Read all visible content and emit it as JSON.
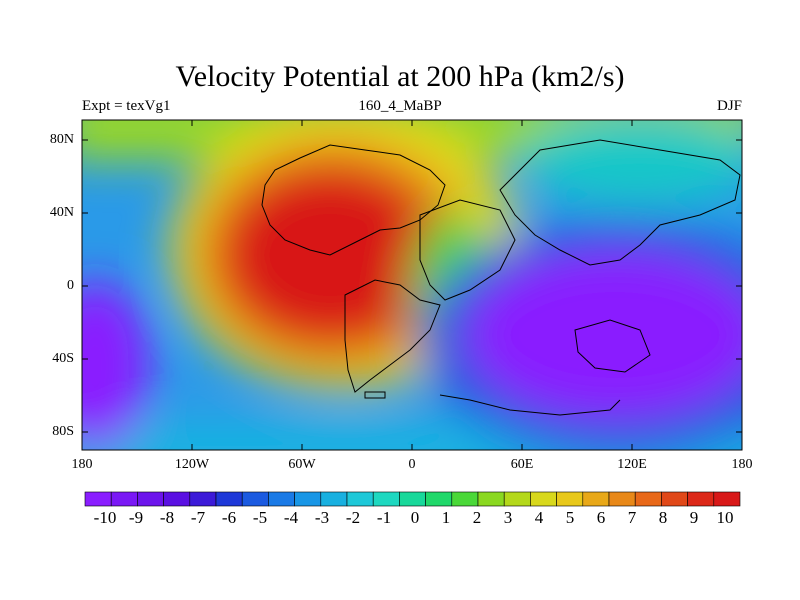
{
  "title": "Velocity Potential at 200 hPa (km2/s)",
  "subtitle_left": "Expt = texVg1",
  "subtitle_center": "160_4_MaBP",
  "subtitle_right": "DJF",
  "y_axis_labels": [
    "80N",
    "40N",
    "0",
    "40S",
    "80S"
  ],
  "x_axis_labels": [
    "180",
    "120W",
    "60W",
    "0",
    "60E",
    "120E",
    "180"
  ],
  "colorbar": {
    "labels": [
      "-10",
      "-9",
      "-8",
      "-7",
      "-6",
      "-5",
      "-4",
      "-3",
      "-2",
      "-1",
      "0",
      "1",
      "2",
      "3",
      "4",
      "5",
      "6",
      "7",
      "8",
      "9",
      "10"
    ],
    "colors": [
      "#8a1eff",
      "#7a18f5",
      "#6c14ec",
      "#5a10e2",
      "#3c1ad8",
      "#1e38d8",
      "#1b5ae0",
      "#1a7ae6",
      "#1896e6",
      "#18b0e0",
      "#1ec8d8",
      "#1ed8c0",
      "#18d89a",
      "#20d86a",
      "#4ad838",
      "#8ad820",
      "#b4d81a",
      "#d8d81c",
      "#e8c81a",
      "#e8a818",
      "#e88818",
      "#e86818",
      "#e04818",
      "#dc2818",
      "#d81818"
    ]
  },
  "chart_data": {
    "type": "heatmap",
    "title": "Velocity Potential at 200 hPa (km2/s)",
    "variable": "velocity potential",
    "units": "km2/s",
    "level": "200 hPa",
    "experiment": "texVg1",
    "case": "160_4_MaBP",
    "season": "DJF",
    "x_ticks": [
      "180",
      "120W",
      "60W",
      "0",
      "60E",
      "120E",
      "180"
    ],
    "y_ticks": [
      "80N",
      "40N",
      "0",
      "40S",
      "80S"
    ],
    "value_range": [
      -10,
      10
    ],
    "features": [
      {
        "name": "positive center",
        "location": "60W-0, 40N-40S",
        "value": 10
      },
      {
        "name": "negative center",
        "location": "60E-180, 20N-60S",
        "value": -10
      },
      {
        "name": "negative center",
        "location": "180-150W, 10S-60S",
        "value": -10
      }
    ]
  }
}
